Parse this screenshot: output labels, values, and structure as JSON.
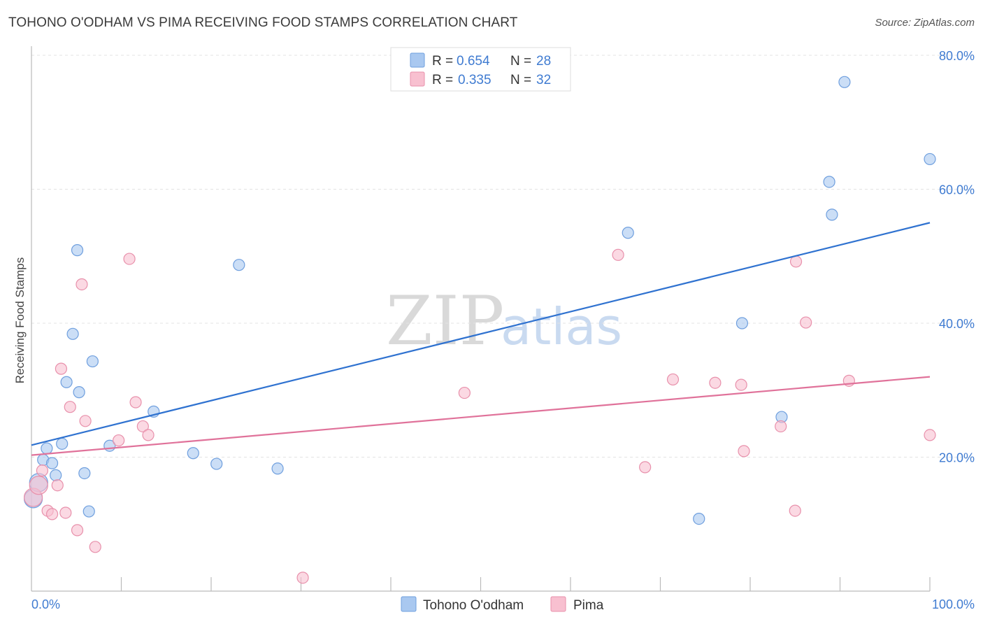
{
  "header": {
    "title": "TOHONO O'ODHAM VS PIMA RECEIVING FOOD STAMPS CORRELATION CHART",
    "source": "Source: ZipAtlas.com"
  },
  "watermark": {
    "zip": "ZIP",
    "atlas": "atlas"
  },
  "legend": {
    "rows": [
      {
        "r_label": "R =",
        "r_value": "0.654",
        "n_label": "N =",
        "n_value": "28",
        "color": "#a9c8f0",
        "stroke": "#6f9fde"
      },
      {
        "r_label": "R =",
        "r_value": "0.335",
        "n_label": "N =",
        "n_value": "32",
        "color": "#f8c0d0",
        "stroke": "#e890ab"
      }
    ]
  },
  "bottom_legend": [
    {
      "label": "Tohono O'odham",
      "color": "#a9c8f0",
      "stroke": "#6f9fde"
    },
    {
      "label": "Pima",
      "color": "#f8c0d0",
      "stroke": "#e890ab"
    }
  ],
  "chart_data": {
    "type": "scatter",
    "title": "TOHONO O'ODHAM VS PIMA RECEIVING FOOD STAMPS CORRELATION CHART",
    "xlabel": "",
    "ylabel": "Receiving Food Stamps",
    "xlim": [
      0,
      100
    ],
    "ylim": [
      0,
      80
    ],
    "x_tick_labels": [
      "0.0%",
      "100.0%"
    ],
    "y_ticks": [
      20,
      40,
      60,
      80
    ],
    "y_tick_labels": [
      "20.0%",
      "40.0%",
      "60.0%",
      "80.0%"
    ],
    "grid": true,
    "series": [
      {
        "name": "Tohono O'odham",
        "color": "#6f9fde",
        "fill": "#a9c8f0",
        "trend": {
          "x": [
            0,
            100
          ],
          "y": [
            21.8,
            55.0
          ],
          "color": "#2f72d0"
        },
        "points": [
          [
            0.2,
            13.8
          ],
          [
            0.8,
            16.2
          ],
          [
            1.3,
            19.6
          ],
          [
            1.7,
            21.3
          ],
          [
            2.3,
            19.1
          ],
          [
            2.7,
            17.3
          ],
          [
            3.4,
            22.0
          ],
          [
            3.9,
            31.2
          ],
          [
            4.6,
            38.4
          ],
          [
            5.1,
            50.9
          ],
          [
            5.3,
            29.7
          ],
          [
            5.9,
            17.6
          ],
          [
            6.4,
            11.9
          ],
          [
            6.8,
            34.3
          ],
          [
            8.7,
            21.7
          ],
          [
            13.6,
            26.8
          ],
          [
            18.0,
            20.6
          ],
          [
            20.6,
            19.0
          ],
          [
            23.1,
            48.7
          ],
          [
            27.4,
            18.3
          ],
          [
            66.4,
            53.5
          ],
          [
            74.3,
            10.8
          ],
          [
            79.1,
            40.0
          ],
          [
            83.5,
            26.0
          ],
          [
            88.8,
            61.1
          ],
          [
            89.1,
            56.2
          ],
          [
            90.5,
            76.0
          ],
          [
            100.0,
            64.5
          ]
        ]
      },
      {
        "name": "Pima",
        "color": "#e890ab",
        "fill": "#f8c0d0",
        "trend": {
          "x": [
            0,
            100
          ],
          "y": [
            20.3,
            32.0
          ],
          "color": "#e0729a"
        },
        "points": [
          [
            0.2,
            14.0
          ],
          [
            0.8,
            15.8
          ],
          [
            1.2,
            18.0
          ],
          [
            1.8,
            12.0
          ],
          [
            2.3,
            11.5
          ],
          [
            2.9,
            15.8
          ],
          [
            3.3,
            33.2
          ],
          [
            3.8,
            11.7
          ],
          [
            4.3,
            27.5
          ],
          [
            5.1,
            9.1
          ],
          [
            5.6,
            45.8
          ],
          [
            6.0,
            25.4
          ],
          [
            7.1,
            6.6
          ],
          [
            9.7,
            22.5
          ],
          [
            10.9,
            49.6
          ],
          [
            11.6,
            28.2
          ],
          [
            12.4,
            24.6
          ],
          [
            13.0,
            23.3
          ],
          [
            30.2,
            2.0
          ],
          [
            48.2,
            29.6
          ],
          [
            65.3,
            50.2
          ],
          [
            68.3,
            18.5
          ],
          [
            71.4,
            31.6
          ],
          [
            76.1,
            31.1
          ],
          [
            79.0,
            30.8
          ],
          [
            79.3,
            20.9
          ],
          [
            83.4,
            24.6
          ],
          [
            85.0,
            12.0
          ],
          [
            85.1,
            49.2
          ],
          [
            86.2,
            40.1
          ],
          [
            91.0,
            31.4
          ],
          [
            100.0,
            23.3
          ]
        ]
      }
    ]
  }
}
